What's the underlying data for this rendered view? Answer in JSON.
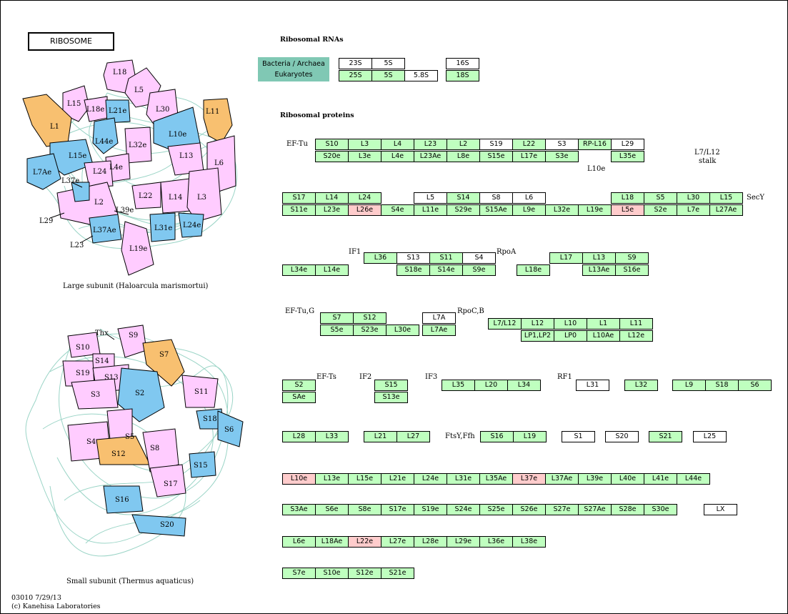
{
  "title": "RIBOSOME",
  "headers": {
    "rna": "Ribosomal RNAs",
    "proteins": "Ribosomal proteins"
  },
  "legend": {
    "line1": "Bacteria / Archaea",
    "line2": "Eukaryotes"
  },
  "large_subunit_caption": "Large subunit (Haloarcula marismortui)",
  "small_subunit_caption": "Small subunit (Thermus aquaticus)",
  "footer": {
    "line1": "03010 7/29/13",
    "line2": "(c) Kanehisa Laboratories"
  },
  "annotations": {
    "ef_tu": "EF-Tu",
    "l7l12": "L7/L12",
    "stalk": "stalk",
    "secy": "SecY",
    "l10e": "L10e",
    "if1": "IF1",
    "rpoa": "RpoA",
    "ef_tug": "EF-Tu,G",
    "rpocb": "RpoC,B",
    "ef_ts": "EF-Ts",
    "if2": "IF2",
    "if3": "IF3",
    "rf1": "RF1",
    "ftsy": "FtsY,Ffh"
  },
  "large_subunit_labels": [
    "L18",
    "L5",
    "L15",
    "L18e",
    "L21e",
    "L30",
    "L11",
    "L1",
    "L44e",
    "L10e",
    "L32e",
    "L15e",
    "L4e",
    "L13",
    "L7Ae",
    "L37e",
    "L24",
    "L6",
    "L22",
    "L14",
    "L3",
    "L2",
    "L39e",
    "L29",
    "L37Ae",
    "L31e",
    "L24e",
    "L23",
    "L19e"
  ],
  "small_subunit_labels": [
    "Thx",
    "S9",
    "S10",
    "S14",
    "S7",
    "S19",
    "S13",
    "S3",
    "S2",
    "S11",
    "S18",
    "S6",
    "S5",
    "S4",
    "S12",
    "S8",
    "S15",
    "S17",
    "S16",
    "S20"
  ],
  "rna_boxes": [
    "23S",
    "5S",
    "16S",
    "25S",
    "5S",
    "5.8S",
    "18S"
  ],
  "protein_boxes": {
    "r1": [
      "S10",
      "L3",
      "L4",
      "L23",
      "L2",
      "S19",
      "L22",
      "S3",
      "RP-L16",
      "L29"
    ],
    "r1b": [
      "S20e",
      "L3e",
      "L4e",
      "L23Ae",
      "L8e",
      "S15e",
      "L17e",
      "S3e",
      "L35e"
    ],
    "r2": [
      "S17",
      "L14",
      "L24",
      "L5",
      "S14",
      "S8",
      "L6",
      "L18",
      "S5",
      "L30",
      "L15"
    ],
    "r2b": [
      "S11e",
      "L23e",
      "L26e",
      "S4e",
      "L11e",
      "S29e",
      "S15Ae",
      "L9e",
      "L32e",
      "L19e",
      "L5e",
      "S2e",
      "L7e",
      "L27Ae"
    ],
    "r3": [
      "L36",
      "S13",
      "S11",
      "S4",
      "L17",
      "L13",
      "S9"
    ],
    "r3b": [
      "L34e",
      "L14e",
      "S18e",
      "S14e",
      "S9e",
      "L18e",
      "L13Ae",
      "S16e"
    ],
    "r4": [
      "S7",
      "S12",
      "L7A",
      "L7/L12",
      "L12",
      "L10",
      "L1",
      "L11"
    ],
    "r4b": [
      "S5e",
      "S23e",
      "L30e",
      "L7Ae",
      "LP1,LP2",
      "LP0",
      "L10Ae",
      "L12e"
    ],
    "r5": [
      "S2",
      "S15",
      "L35",
      "L20",
      "L34",
      "L31",
      "L32",
      "L9",
      "S18",
      "S6"
    ],
    "r5b": [
      "SAe",
      "S13e"
    ],
    "r6": [
      "L28",
      "L33",
      "L21",
      "L27",
      "S16",
      "L19",
      "S1",
      "S20",
      "S21",
      "L25"
    ],
    "r7": [
      "L10e",
      "L13e",
      "L15e",
      "L21e",
      "L24e",
      "L31e",
      "L35Ae",
      "L37e",
      "L37Ae",
      "L39e",
      "L40e",
      "L41e",
      "L44e"
    ],
    "r8": [
      "S3Ae",
      "S6e",
      "S8e",
      "S17e",
      "S19e",
      "S24e",
      "S25e",
      "S26e",
      "S27e",
      "S27Ae",
      "S28e",
      "S30e",
      "LX"
    ],
    "r9": [
      "L6e",
      "L18Ae",
      "L22e",
      "L27e",
      "L28e",
      "L29e",
      "L36e",
      "L38e"
    ],
    "r10": [
      "S7e",
      "S10e",
      "S12e",
      "S21e"
    ]
  },
  "colors": {
    "present": "#bfffbf",
    "absent": "#ffffff",
    "highlight": "#ffcccc",
    "pink_shape": "#ffccff",
    "blue_shape": "#80c8f0",
    "orange_shape": "#f8c070",
    "rna_tangle": "#90d0c0"
  }
}
